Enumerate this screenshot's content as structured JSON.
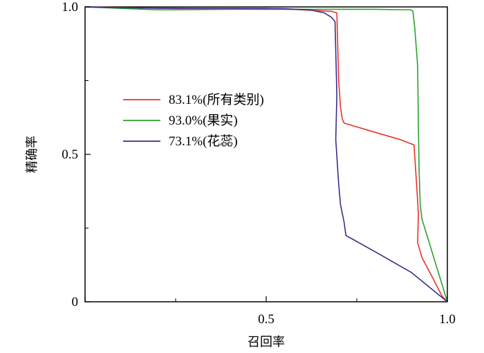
{
  "chart_data": {
    "type": "line",
    "xlabel": "召回率",
    "ylabel": "精确率",
    "xlim": [
      0,
      1
    ],
    "ylim": [
      0,
      1
    ],
    "x_ticks": [
      {
        "value": 0,
        "label": ""
      },
      {
        "value": 0.5,
        "label": "0.5"
      },
      {
        "value": 1.0,
        "label": "1.0"
      }
    ],
    "y_ticks": [
      {
        "value": 0,
        "label": "0"
      },
      {
        "value": 0.5,
        "label": "0.5"
      },
      {
        "value": 1.0,
        "label": "1.0"
      }
    ],
    "legend_position": "center-left",
    "series": [
      {
        "name": "83.1%(所有类别)",
        "color": "#e8302a",
        "points": [
          [
            0,
            1.0
          ],
          [
            0.15,
            0.997
          ],
          [
            0.3,
            0.995
          ],
          [
            0.5,
            0.995
          ],
          [
            0.6,
            0.99
          ],
          [
            0.68,
            0.985
          ],
          [
            0.695,
            0.98
          ],
          [
            0.7,
            0.75
          ],
          [
            0.705,
            0.66
          ],
          [
            0.71,
            0.62
          ],
          [
            0.715,
            0.606
          ],
          [
            0.8,
            0.575
          ],
          [
            0.87,
            0.55
          ],
          [
            0.908,
            0.532
          ],
          [
            0.915,
            0.4
          ],
          [
            0.92,
            0.3
          ],
          [
            0.918,
            0.2
          ],
          [
            0.93,
            0.15
          ],
          [
            0.96,
            0.08
          ],
          [
            0.985,
            0.02
          ],
          [
            1.0,
            0.0
          ]
        ]
      },
      {
        "name": "93.0%(果实)",
        "color": "#2ba02b",
        "points": [
          [
            0,
            1.0
          ],
          [
            0.2,
            0.99
          ],
          [
            0.4,
            0.992
          ],
          [
            0.6,
            0.992
          ],
          [
            0.8,
            0.992
          ],
          [
            0.9,
            0.99
          ],
          [
            0.905,
            0.985
          ],
          [
            0.91,
            0.93
          ],
          [
            0.918,
            0.8
          ],
          [
            0.92,
            0.6
          ],
          [
            0.922,
            0.45
          ],
          [
            0.925,
            0.33
          ],
          [
            0.93,
            0.28
          ],
          [
            0.945,
            0.22
          ],
          [
            0.97,
            0.12
          ],
          [
            0.99,
            0.04
          ],
          [
            1.0,
            0.0
          ]
        ]
      },
      {
        "name": "73.1%(花蕊)",
        "color": "#3d2a8c",
        "points": [
          [
            0,
            1.0
          ],
          [
            0.2,
            0.995
          ],
          [
            0.4,
            0.995
          ],
          [
            0.55,
            0.994
          ],
          [
            0.62,
            0.99
          ],
          [
            0.66,
            0.98
          ],
          [
            0.68,
            0.965
          ],
          [
            0.69,
            0.95
          ],
          [
            0.695,
            0.7
          ],
          [
            0.692,
            0.55
          ],
          [
            0.7,
            0.4
          ],
          [
            0.705,
            0.33
          ],
          [
            0.715,
            0.27
          ],
          [
            0.72,
            0.225
          ],
          [
            0.8,
            0.17
          ],
          [
            0.9,
            0.1
          ],
          [
            0.97,
            0.03
          ],
          [
            1.0,
            0.0
          ]
        ]
      }
    ]
  }
}
